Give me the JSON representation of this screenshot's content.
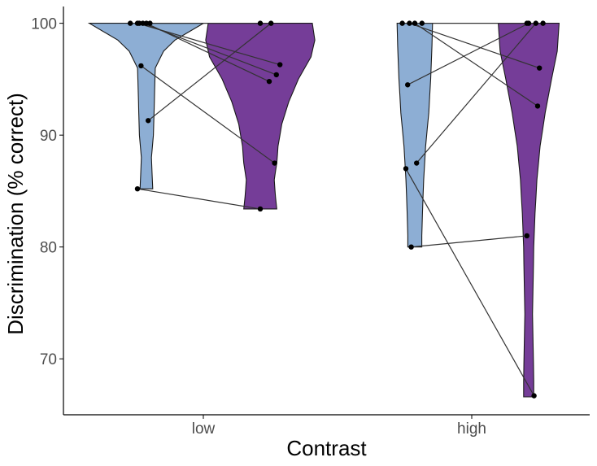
{
  "chart_data": {
    "type": "violin",
    "xlabel": "Contrast",
    "ylabel": "Discrimination (% correct)",
    "categories": [
      "low",
      "high"
    ],
    "yticks": [
      70,
      80,
      90,
      100
    ],
    "ylim": [
      65,
      101.5
    ],
    "grid": false,
    "legend": "none",
    "series": [
      {
        "color": "#8DAED4",
        "group_offset": -0.5
      },
      {
        "color": "#753D98",
        "group_offset": 0.5
      }
    ],
    "violins": [
      {
        "category": "low",
        "series": 0,
        "range": [
          85.2,
          100
        ],
        "profile": [
          [
            100,
            0.9
          ],
          [
            99.5,
            0.75
          ],
          [
            98.5,
            0.45
          ],
          [
            97.5,
            0.27
          ],
          [
            96,
            0.14
          ],
          [
            94,
            0.13
          ],
          [
            92,
            0.12
          ],
          [
            90,
            0.11
          ],
          [
            88,
            0.08
          ],
          [
            86.5,
            0.09
          ],
          [
            85.2,
            0.1
          ]
        ]
      },
      {
        "category": "low",
        "series": 1,
        "range": [
          83.4,
          100
        ],
        "profile": [
          [
            100,
            0.82
          ],
          [
            98.5,
            0.86
          ],
          [
            97,
            0.8
          ],
          [
            95,
            0.6
          ],
          [
            93,
            0.45
          ],
          [
            91,
            0.34
          ],
          [
            89,
            0.28
          ],
          [
            87.5,
            0.26
          ],
          [
            86,
            0.22
          ],
          [
            84.5,
            0.24
          ],
          [
            83.4,
            0.26
          ]
        ]
      },
      {
        "category": "high",
        "series": 0,
        "range": [
          80,
          100
        ],
        "profile": [
          [
            100,
            0.28
          ],
          [
            98,
            0.27
          ],
          [
            95,
            0.25
          ],
          [
            92,
            0.22
          ],
          [
            89,
            0.17
          ],
          [
            86,
            0.14
          ],
          [
            83,
            0.12
          ],
          [
            81,
            0.11
          ],
          [
            80,
            0.11
          ]
        ]
      },
      {
        "category": "high",
        "series": 1,
        "range": [
          66.6,
          100
        ],
        "profile": [
          [
            100,
            0.48
          ],
          [
            97.5,
            0.45
          ],
          [
            95,
            0.36
          ],
          [
            92,
            0.26
          ],
          [
            89,
            0.18
          ],
          [
            86,
            0.13
          ],
          [
            83,
            0.1
          ],
          [
            80,
            0.08
          ],
          [
            77,
            0.07
          ],
          [
            74,
            0.06
          ],
          [
            71,
            0.07
          ],
          [
            68,
            0.08
          ],
          [
            66.6,
            0.08
          ]
        ]
      }
    ],
    "points": [
      {
        "category": "low",
        "series": 0,
        "jitter": -0.09,
        "y": 100
      },
      {
        "category": "low",
        "series": 0,
        "jitter": -0.05,
        "y": 100
      },
      {
        "category": "low",
        "series": 0,
        "jitter": -0.04,
        "y": 100
      },
      {
        "category": "low",
        "series": 0,
        "jitter": -0.02,
        "y": 100
      },
      {
        "category": "low",
        "series": 0,
        "jitter": 0.0,
        "y": 100
      },
      {
        "category": "low",
        "series": 0,
        "jitter": 0.02,
        "y": 100
      },
      {
        "category": "low",
        "series": 0,
        "jitter": -0.03,
        "y": 96.2
      },
      {
        "category": "low",
        "series": 0,
        "jitter": 0.01,
        "y": 91.3
      },
      {
        "category": "low",
        "series": 0,
        "jitter": -0.05,
        "y": 85.2
      },
      {
        "category": "low",
        "series": 1,
        "jitter": 0.0,
        "y": 100
      },
      {
        "category": "low",
        "series": 1,
        "jitter": 0.06,
        "y": 100
      },
      {
        "category": "low",
        "series": 1,
        "jitter": 0.11,
        "y": 96.3
      },
      {
        "category": "low",
        "series": 1,
        "jitter": 0.09,
        "y": 95.4
      },
      {
        "category": "low",
        "series": 1,
        "jitter": 0.05,
        "y": 94.8
      },
      {
        "category": "low",
        "series": 1,
        "jitter": 0.08,
        "y": 87.5
      },
      {
        "category": "low",
        "series": 1,
        "jitter": 0.0,
        "y": 83.4
      },
      {
        "category": "high",
        "series": 0,
        "jitter": -0.07,
        "y": 100
      },
      {
        "category": "high",
        "series": 0,
        "jitter": -0.03,
        "y": 100
      },
      {
        "category": "high",
        "series": 0,
        "jitter": 0.0,
        "y": 100
      },
      {
        "category": "high",
        "series": 0,
        "jitter": 0.04,
        "y": 100
      },
      {
        "category": "high",
        "series": 0,
        "jitter": -0.04,
        "y": 94.5
      },
      {
        "category": "high",
        "series": 0,
        "jitter": 0.01,
        "y": 87.5
      },
      {
        "category": "high",
        "series": 0,
        "jitter": -0.05,
        "y": 87.0
      },
      {
        "category": "high",
        "series": 0,
        "jitter": -0.02,
        "y": 80.0
      },
      {
        "category": "high",
        "series": 1,
        "jitter": -0.01,
        "y": 100
      },
      {
        "category": "high",
        "series": 1,
        "jitter": 0.0,
        "y": 100
      },
      {
        "category": "high",
        "series": 1,
        "jitter": 0.04,
        "y": 100
      },
      {
        "category": "high",
        "series": 1,
        "jitter": 0.08,
        "y": 100
      },
      {
        "category": "high",
        "series": 1,
        "jitter": 0.06,
        "y": 96.0
      },
      {
        "category": "high",
        "series": 1,
        "jitter": 0.05,
        "y": 92.6
      },
      {
        "category": "high",
        "series": 1,
        "jitter": -0.01,
        "y": 81.0
      },
      {
        "category": "high",
        "series": 1,
        "jitter": 0.03,
        "y": 66.7
      }
    ],
    "pairs": [
      {
        "category": "low",
        "from": {
          "jitter": -0.09,
          "y": 100
        },
        "to": {
          "jitter": 0.06,
          "y": 100
        }
      },
      {
        "category": "low",
        "from": {
          "jitter": -0.05,
          "y": 100
        },
        "to": {
          "jitter": 0.11,
          "y": 96.3
        }
      },
      {
        "category": "low",
        "from": {
          "jitter": -0.02,
          "y": 100
        },
        "to": {
          "jitter": 0.09,
          "y": 95.4
        }
      },
      {
        "category": "low",
        "from": {
          "jitter": 0.0,
          "y": 100
        },
        "to": {
          "jitter": 0.05,
          "y": 94.8
        }
      },
      {
        "category": "low",
        "from": {
          "jitter": -0.03,
          "y": 96.2
        },
        "to": {
          "jitter": 0.08,
          "y": 87.5
        }
      },
      {
        "category": "low",
        "from": {
          "jitter": 0.01,
          "y": 91.3
        },
        "to": {
          "jitter": 0.06,
          "y": 100
        }
      },
      {
        "category": "low",
        "from": {
          "jitter": -0.05,
          "y": 85.2
        },
        "to": {
          "jitter": 0.0,
          "y": 83.4
        }
      },
      {
        "category": "high",
        "from": {
          "jitter": -0.07,
          "y": 100
        },
        "to": {
          "jitter": 0.08,
          "y": 100
        }
      },
      {
        "category": "high",
        "from": {
          "jitter": -0.03,
          "y": 100
        },
        "to": {
          "jitter": 0.06,
          "y": 96.0
        }
      },
      {
        "category": "high",
        "from": {
          "jitter": 0.0,
          "y": 100
        },
        "to": {
          "jitter": 0.05,
          "y": 92.6
        }
      },
      {
        "category": "high",
        "from": {
          "jitter": -0.04,
          "y": 94.5
        },
        "to": {
          "jitter": 0.0,
          "y": 100
        }
      },
      {
        "category": "high",
        "from": {
          "jitter": 0.01,
          "y": 87.5
        },
        "to": {
          "jitter": 0.04,
          "y": 100
        }
      },
      {
        "category": "high",
        "from": {
          "jitter": -0.05,
          "y": 87.0
        },
        "to": {
          "jitter": 0.03,
          "y": 66.7
        }
      },
      {
        "category": "high",
        "from": {
          "jitter": -0.02,
          "y": 80.0
        },
        "to": {
          "jitter": -0.01,
          "y": 81.0
        }
      }
    ]
  }
}
